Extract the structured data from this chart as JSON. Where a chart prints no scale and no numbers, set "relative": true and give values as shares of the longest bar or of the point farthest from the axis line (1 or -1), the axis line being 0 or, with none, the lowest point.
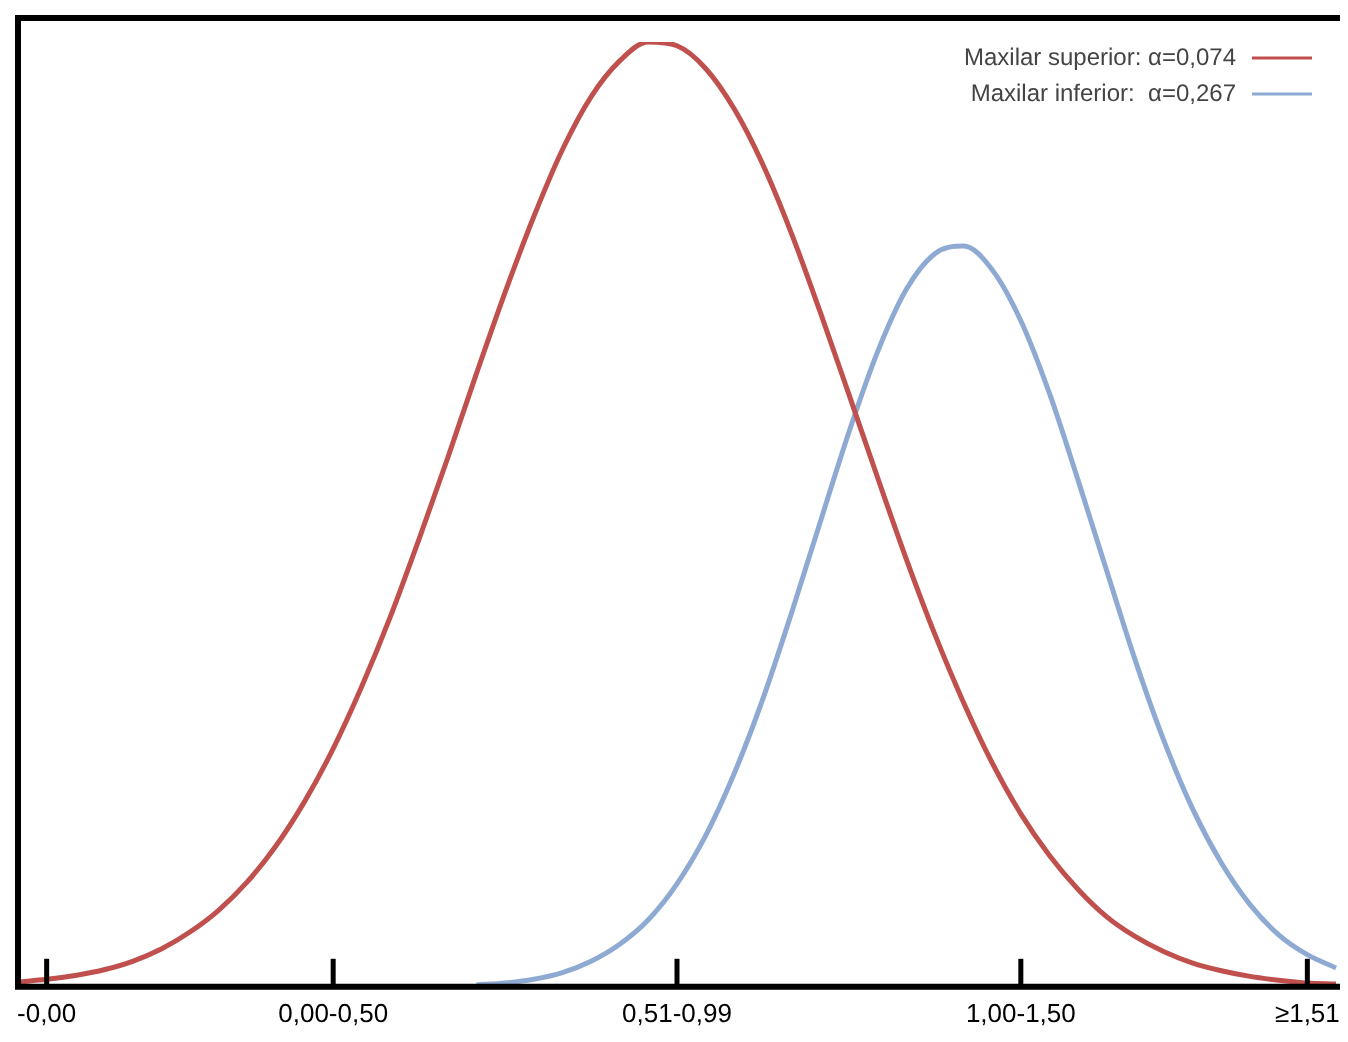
{
  "chart_data": {
    "type": "line",
    "relative": true,
    "legend": "top right",
    "marker": "none",
    "line_style": "solid",
    "categories": [
      null,
      "-0,00",
      null,
      null,
      null,
      null,
      null,
      null,
      null,
      null,
      null,
      "0,00-0,50",
      null,
      null,
      null,
      null,
      null,
      null,
      null,
      null,
      null,
      null,
      null,
      "0,51-0,99",
      null,
      null,
      null,
      null,
      null,
      null,
      null,
      null,
      null,
      null,
      null,
      "1,00-1,50",
      null,
      null,
      null,
      null,
      null,
      null,
      null,
      null,
      null,
      "≥1,51",
      null
    ],
    "series": [
      {
        "name": "Maxilar superior: α=0,074",
        "color": "#c0504d",
        "values": [
          0.005,
          0.008,
          0.012,
          0.018,
          0.027,
          0.04,
          0.058,
          0.081,
          0.111,
          0.149,
          0.196,
          0.252,
          0.318,
          0.392,
          0.474,
          0.56,
          0.649,
          0.735,
          0.815,
          0.886,
          0.942,
          0.98,
          1,
          0.996,
          0.972,
          0.929,
          0.87,
          0.797,
          0.714,
          0.627,
          0.539,
          0.453,
          0.373,
          0.301,
          0.237,
          0.183,
          0.139,
          0.103,
          0.074,
          0.053,
          0.037,
          0.025,
          0.017,
          0.011,
          0.007,
          0.004,
          0.003
        ]
      },
      {
        "name": "Maxilar inferior:  α=0,267",
        "color": "#8eaad3",
        "values": [
          null,
          null,
          null,
          null,
          null,
          null,
          null,
          null,
          null,
          null,
          null,
          null,
          null,
          null,
          null,
          null,
          0.002,
          0.004,
          0.008,
          0.015,
          0.027,
          0.045,
          0.071,
          0.109,
          0.16,
          0.226,
          0.305,
          0.396,
          0.492,
          0.587,
          0.672,
          0.738,
          0.776,
          0.784,
          0.759,
          0.705,
          0.628,
          0.536,
          0.44,
          0.345,
          0.26,
          0.188,
          0.131,
          0.087,
          0.055,
          0.034,
          0.02
        ]
      }
    ]
  }
}
